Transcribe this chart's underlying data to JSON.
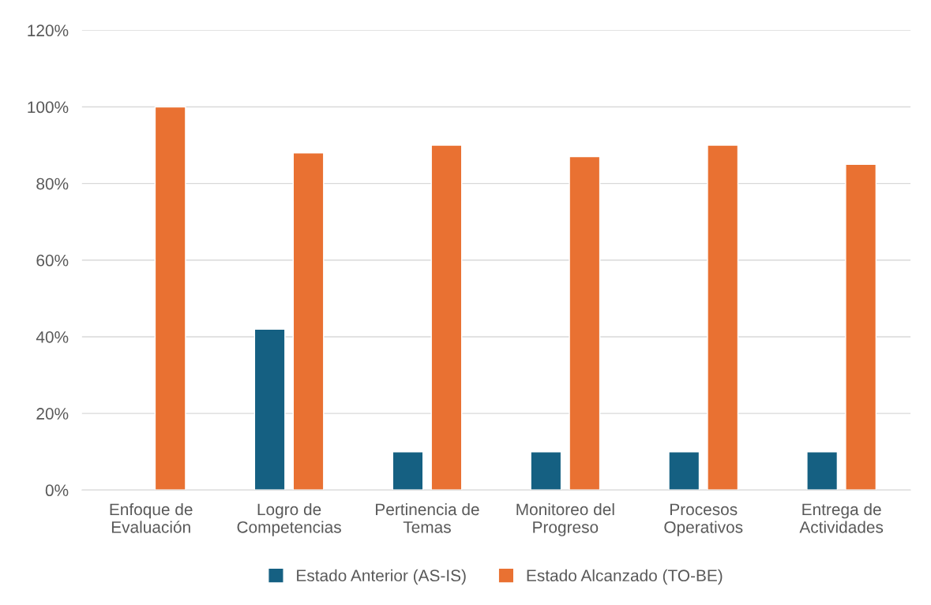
{
  "chart_data": {
    "type": "bar",
    "categories": [
      "Enfoque de\nEvaluación",
      "Logro de\nCompetencias",
      "Pertinencia de\nTemas",
      "Monitoreo del\nProgreso",
      "Procesos\nOperativos",
      "Entrega de\nActividades"
    ],
    "series": [
      {
        "name": "Estado Anterior (AS-IS)",
        "color": "#156082",
        "values": [
          null,
          42,
          10,
          10,
          10,
          10
        ]
      },
      {
        "name": "Estado Alcanzado (TO-BE)",
        "color": "#e97132",
        "values": [
          100,
          88,
          90,
          87,
          90,
          85
        ]
      }
    ],
    "ylim": [
      0,
      120
    ],
    "yticks": [
      {
        "value": 0,
        "label": "0%"
      },
      {
        "value": 20,
        "label": "20%"
      },
      {
        "value": 40,
        "label": "40%"
      },
      {
        "value": 60,
        "label": "60%"
      },
      {
        "value": 80,
        "label": "80%"
      },
      {
        "value": 100,
        "label": "100%"
      },
      {
        "value": 120,
        "label": "120%"
      }
    ],
    "grid": "y",
    "legend": "bottom"
  }
}
